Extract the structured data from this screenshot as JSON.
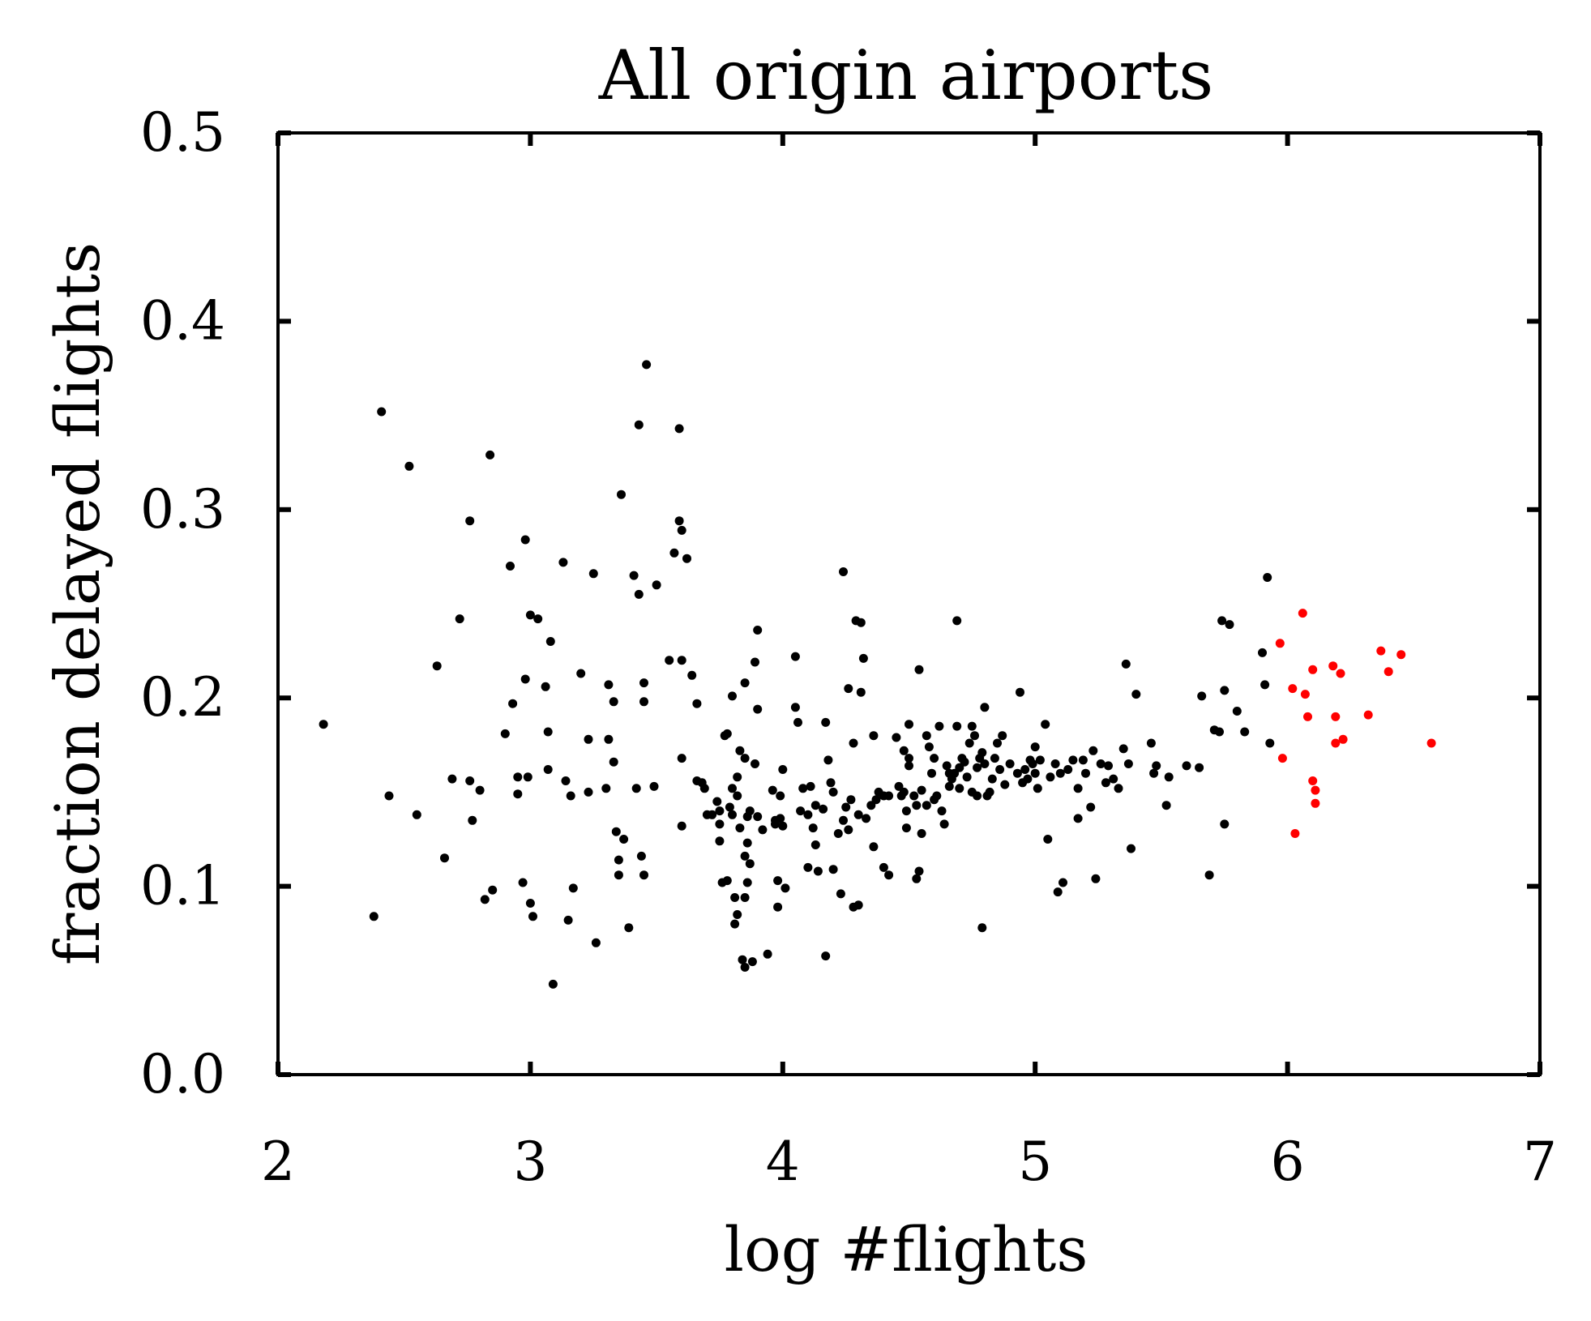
{
  "chart_data": {
    "type": "scatter",
    "title": "All origin airports",
    "xlabel": "log #flights",
    "ylabel": "fraction delayed flights",
    "xlim": [
      2,
      7
    ],
    "ylim": [
      0.0,
      0.5
    ],
    "x_ticks": [
      "2",
      "3",
      "4",
      "5",
      "6",
      "7"
    ],
    "y_ticks": [
      "0.0",
      "0.1",
      "0.2",
      "0.3",
      "0.4",
      "0.5"
    ],
    "grid": false,
    "legend": "none",
    "colors": {
      "main": "#000000",
      "highlight": "#ff0000"
    },
    "series": [
      {
        "color": "#000000",
        "points": [
          [
            2.18,
            0.186
          ],
          [
            2.38,
            0.084
          ],
          [
            2.41,
            0.352
          ],
          [
            2.44,
            0.148
          ],
          [
            2.52,
            0.323
          ],
          [
            2.55,
            0.138
          ],
          [
            2.63,
            0.217
          ],
          [
            2.66,
            0.115
          ],
          [
            2.69,
            0.157
          ],
          [
            2.72,
            0.242
          ],
          [
            2.76,
            0.156
          ],
          [
            2.76,
            0.294
          ],
          [
            2.77,
            0.135
          ],
          [
            2.8,
            0.151
          ],
          [
            2.82,
            0.093
          ],
          [
            2.84,
            0.329
          ],
          [
            2.85,
            0.098
          ],
          [
            2.9,
            0.181
          ],
          [
            2.92,
            0.27
          ],
          [
            2.93,
            0.197
          ],
          [
            2.95,
            0.158
          ],
          [
            2.95,
            0.149
          ],
          [
            2.97,
            0.102
          ],
          [
            2.98,
            0.284
          ],
          [
            2.98,
            0.21
          ],
          [
            2.99,
            0.158
          ],
          [
            3.0,
            0.244
          ],
          [
            3.0,
            0.091
          ],
          [
            3.01,
            0.084
          ],
          [
            3.03,
            0.242
          ],
          [
            3.06,
            0.206
          ],
          [
            3.07,
            0.182
          ],
          [
            3.07,
            0.162
          ],
          [
            3.08,
            0.23
          ],
          [
            3.09,
            0.048
          ],
          [
            3.13,
            0.272
          ],
          [
            3.14,
            0.156
          ],
          [
            3.15,
            0.082
          ],
          [
            3.16,
            0.148
          ],
          [
            3.17,
            0.099
          ],
          [
            3.2,
            0.213
          ],
          [
            3.23,
            0.15
          ],
          [
            3.23,
            0.178
          ],
          [
            3.25,
            0.266
          ],
          [
            3.26,
            0.07
          ],
          [
            3.3,
            0.152
          ],
          [
            3.31,
            0.178
          ],
          [
            3.31,
            0.207
          ],
          [
            3.33,
            0.166
          ],
          [
            3.33,
            0.198
          ],
          [
            3.34,
            0.129
          ],
          [
            3.35,
            0.106
          ],
          [
            3.35,
            0.114
          ],
          [
            3.36,
            0.308
          ],
          [
            3.37,
            0.125
          ],
          [
            3.39,
            0.078
          ],
          [
            3.41,
            0.265
          ],
          [
            3.42,
            0.152
          ],
          [
            3.43,
            0.345
          ],
          [
            3.43,
            0.255
          ],
          [
            3.44,
            0.116
          ],
          [
            3.45,
            0.106
          ],
          [
            3.45,
            0.198
          ],
          [
            3.45,
            0.208
          ],
          [
            3.46,
            0.377
          ],
          [
            3.49,
            0.153
          ],
          [
            3.5,
            0.26
          ],
          [
            3.55,
            0.22
          ],
          [
            3.57,
            0.277
          ],
          [
            3.59,
            0.343
          ],
          [
            3.59,
            0.294
          ],
          [
            3.6,
            0.289
          ],
          [
            3.6,
            0.22
          ],
          [
            3.6,
            0.168
          ],
          [
            3.6,
            0.132
          ],
          [
            3.62,
            0.274
          ],
          [
            3.64,
            0.212
          ],
          [
            3.66,
            0.197
          ],
          [
            3.66,
            0.156
          ],
          [
            3.68,
            0.155
          ],
          [
            3.69,
            0.152
          ],
          [
            3.7,
            0.138
          ],
          [
            3.72,
            0.138
          ],
          [
            3.74,
            0.145
          ],
          [
            3.75,
            0.14
          ],
          [
            3.75,
            0.133
          ],
          [
            3.75,
            0.124
          ],
          [
            3.76,
            0.102
          ],
          [
            3.77,
            0.18
          ],
          [
            3.78,
            0.181
          ],
          [
            3.78,
            0.103
          ],
          [
            3.79,
            0.142
          ],
          [
            3.8,
            0.201
          ],
          [
            3.8,
            0.152
          ],
          [
            3.8,
            0.138
          ],
          [
            3.81,
            0.08
          ],
          [
            3.81,
            0.094
          ],
          [
            3.82,
            0.085
          ],
          [
            3.82,
            0.148
          ],
          [
            3.82,
            0.158
          ],
          [
            3.83,
            0.172
          ],
          [
            3.83,
            0.131
          ],
          [
            3.84,
            0.061
          ],
          [
            3.85,
            0.057
          ],
          [
            3.85,
            0.094
          ],
          [
            3.85,
            0.116
          ],
          [
            3.85,
            0.208
          ],
          [
            3.85,
            0.168
          ],
          [
            3.86,
            0.137
          ],
          [
            3.86,
            0.123
          ],
          [
            3.86,
            0.102
          ],
          [
            3.87,
            0.14
          ],
          [
            3.87,
            0.112
          ],
          [
            3.88,
            0.06
          ],
          [
            3.89,
            0.165
          ],
          [
            3.89,
            0.219
          ],
          [
            3.9,
            0.236
          ],
          [
            3.9,
            0.194
          ],
          [
            3.9,
            0.137
          ],
          [
            3.92,
            0.13
          ],
          [
            3.94,
            0.064
          ],
          [
            3.96,
            0.151
          ],
          [
            3.97,
            0.135
          ],
          [
            3.97,
            0.133
          ],
          [
            3.98,
            0.089
          ],
          [
            3.98,
            0.103
          ],
          [
            3.99,
            0.148
          ],
          [
            3.99,
            0.136
          ],
          [
            4.0,
            0.162
          ],
          [
            4.0,
            0.132
          ],
          [
            4.01,
            0.099
          ],
          [
            4.05,
            0.222
          ],
          [
            4.05,
            0.195
          ],
          [
            4.06,
            0.187
          ],
          [
            4.07,
            0.14
          ],
          [
            4.08,
            0.152
          ],
          [
            4.1,
            0.138
          ],
          [
            4.1,
            0.11
          ],
          [
            4.11,
            0.153
          ],
          [
            4.12,
            0.131
          ],
          [
            4.13,
            0.143
          ],
          [
            4.13,
            0.122
          ],
          [
            4.14,
            0.108
          ],
          [
            4.16,
            0.141
          ],
          [
            4.17,
            0.063
          ],
          [
            4.17,
            0.187
          ],
          [
            4.18,
            0.167
          ],
          [
            4.19,
            0.155
          ],
          [
            4.2,
            0.15
          ],
          [
            4.2,
            0.109
          ],
          [
            4.22,
            0.128
          ],
          [
            4.23,
            0.096
          ],
          [
            4.24,
            0.267
          ],
          [
            4.24,
            0.135
          ],
          [
            4.25,
            0.142
          ],
          [
            4.26,
            0.205
          ],
          [
            4.26,
            0.13
          ],
          [
            4.27,
            0.146
          ],
          [
            4.28,
            0.089
          ],
          [
            4.28,
            0.176
          ],
          [
            4.29,
            0.241
          ],
          [
            4.3,
            0.138
          ],
          [
            4.3,
            0.09
          ],
          [
            4.31,
            0.24
          ],
          [
            4.31,
            0.203
          ],
          [
            4.32,
            0.221
          ],
          [
            4.33,
            0.136
          ],
          [
            4.35,
            0.143
          ],
          [
            4.36,
            0.121
          ],
          [
            4.36,
            0.18
          ],
          [
            4.37,
            0.146
          ],
          [
            4.38,
            0.15
          ],
          [
            4.4,
            0.148
          ],
          [
            4.4,
            0.11
          ],
          [
            4.42,
            0.148
          ],
          [
            4.42,
            0.106
          ],
          [
            4.45,
            0.179
          ],
          [
            4.46,
            0.153
          ],
          [
            4.47,
            0.148
          ],
          [
            4.48,
            0.15
          ],
          [
            4.48,
            0.172
          ],
          [
            4.49,
            0.131
          ],
          [
            4.49,
            0.14
          ],
          [
            4.5,
            0.186
          ],
          [
            4.5,
            0.164
          ],
          [
            4.5,
            0.168
          ],
          [
            4.52,
            0.148
          ],
          [
            4.53,
            0.104
          ],
          [
            4.53,
            0.143
          ],
          [
            4.54,
            0.108
          ],
          [
            4.54,
            0.215
          ],
          [
            4.55,
            0.151
          ],
          [
            4.55,
            0.128
          ],
          [
            4.57,
            0.143
          ],
          [
            4.57,
            0.18
          ],
          [
            4.58,
            0.174
          ],
          [
            4.59,
            0.16
          ],
          [
            4.6,
            0.168
          ],
          [
            4.6,
            0.146
          ],
          [
            4.61,
            0.148
          ],
          [
            4.62,
            0.185
          ],
          [
            4.63,
            0.14
          ],
          [
            4.64,
            0.133
          ],
          [
            4.65,
            0.164
          ],
          [
            4.66,
            0.153
          ],
          [
            4.66,
            0.16
          ],
          [
            4.67,
            0.157
          ],
          [
            4.68,
            0.16
          ],
          [
            4.69,
            0.241
          ],
          [
            4.69,
            0.185
          ],
          [
            4.7,
            0.152
          ],
          [
            4.7,
            0.163
          ],
          [
            4.71,
            0.168
          ],
          [
            4.72,
            0.166
          ],
          [
            4.73,
            0.158
          ],
          [
            4.74,
            0.176
          ],
          [
            4.75,
            0.15
          ],
          [
            4.75,
            0.185
          ],
          [
            4.76,
            0.18
          ],
          [
            4.77,
            0.148
          ],
          [
            4.77,
            0.163
          ],
          [
            4.78,
            0.168
          ],
          [
            4.79,
            0.171
          ],
          [
            4.79,
            0.078
          ],
          [
            4.8,
            0.195
          ],
          [
            4.8,
            0.165
          ],
          [
            4.81,
            0.148
          ],
          [
            4.82,
            0.15
          ],
          [
            4.83,
            0.157
          ],
          [
            4.84,
            0.168
          ],
          [
            4.85,
            0.176
          ],
          [
            4.86,
            0.162
          ],
          [
            4.87,
            0.18
          ],
          [
            4.88,
            0.154
          ],
          [
            4.9,
            0.165
          ],
          [
            4.93,
            0.16
          ],
          [
            4.94,
            0.203
          ],
          [
            4.95,
            0.155
          ],
          [
            4.96,
            0.162
          ],
          [
            4.97,
            0.157
          ],
          [
            4.98,
            0.167
          ],
          [
            4.99,
            0.165
          ],
          [
            5.0,
            0.174
          ],
          [
            5.0,
            0.16
          ],
          [
            5.01,
            0.152
          ],
          [
            5.02,
            0.167
          ],
          [
            5.04,
            0.186
          ],
          [
            5.05,
            0.125
          ],
          [
            5.06,
            0.158
          ],
          [
            5.08,
            0.165
          ],
          [
            5.09,
            0.097
          ],
          [
            5.1,
            0.16
          ],
          [
            5.11,
            0.102
          ],
          [
            5.13,
            0.162
          ],
          [
            5.15,
            0.167
          ],
          [
            5.17,
            0.152
          ],
          [
            5.17,
            0.136
          ],
          [
            5.19,
            0.167
          ],
          [
            5.2,
            0.16
          ],
          [
            5.22,
            0.142
          ],
          [
            5.23,
            0.172
          ],
          [
            5.24,
            0.104
          ],
          [
            5.26,
            0.165
          ],
          [
            5.28,
            0.155
          ],
          [
            5.29,
            0.164
          ],
          [
            5.31,
            0.157
          ],
          [
            5.33,
            0.152
          ],
          [
            5.35,
            0.173
          ],
          [
            5.36,
            0.218
          ],
          [
            5.37,
            0.165
          ],
          [
            5.38,
            0.12
          ],
          [
            5.4,
            0.202
          ],
          [
            5.46,
            0.176
          ],
          [
            5.47,
            0.16
          ],
          [
            5.48,
            0.164
          ],
          [
            5.52,
            0.143
          ],
          [
            5.53,
            0.158
          ],
          [
            5.6,
            0.164
          ],
          [
            5.65,
            0.163
          ],
          [
            5.66,
            0.201
          ],
          [
            5.69,
            0.106
          ],
          [
            5.71,
            0.183
          ],
          [
            5.73,
            0.182
          ],
          [
            5.74,
            0.241
          ],
          [
            5.75,
            0.204
          ],
          [
            5.75,
            0.133
          ],
          [
            5.77,
            0.239
          ],
          [
            5.8,
            0.193
          ],
          [
            5.83,
            0.182
          ],
          [
            5.9,
            0.224
          ],
          [
            5.91,
            0.207
          ],
          [
            5.92,
            0.264
          ],
          [
            5.93,
            0.176
          ]
        ]
      },
      {
        "color": "#ff0000",
        "points": [
          [
            5.97,
            0.229
          ],
          [
            5.98,
            0.168
          ],
          [
            6.02,
            0.205
          ],
          [
            6.03,
            0.128
          ],
          [
            6.06,
            0.245
          ],
          [
            6.07,
            0.202
          ],
          [
            6.08,
            0.19
          ],
          [
            6.1,
            0.215
          ],
          [
            6.1,
            0.156
          ],
          [
            6.11,
            0.151
          ],
          [
            6.11,
            0.144
          ],
          [
            6.18,
            0.217
          ],
          [
            6.19,
            0.19
          ],
          [
            6.19,
            0.176
          ],
          [
            6.21,
            0.213
          ],
          [
            6.22,
            0.178
          ],
          [
            6.32,
            0.191
          ],
          [
            6.37,
            0.225
          ],
          [
            6.4,
            0.214
          ],
          [
            6.45,
            0.223
          ],
          [
            6.57,
            0.176
          ]
        ]
      }
    ]
  }
}
